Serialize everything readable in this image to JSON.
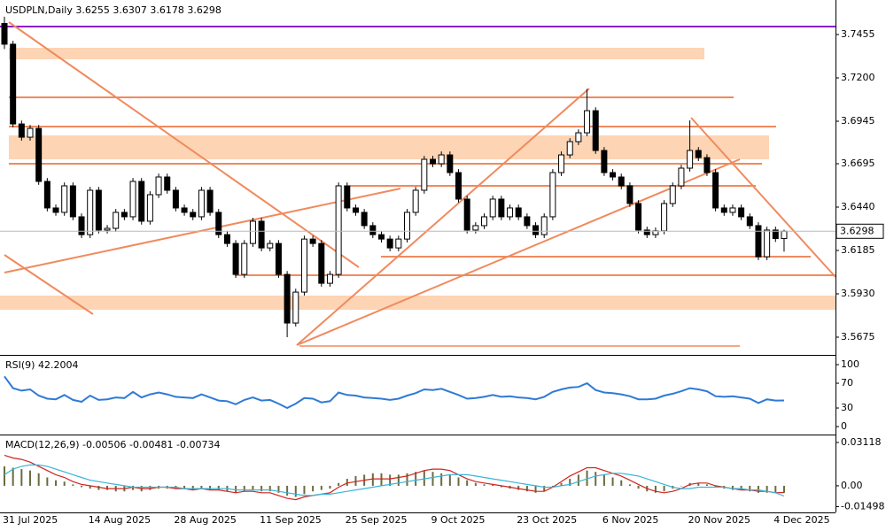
{
  "chart_data": [
    {
      "type": "candlestick",
      "title": "USDPLN,Daily",
      "categories": [
        "31 Jul 2025",
        null,
        null,
        null,
        null,
        null,
        null,
        null,
        null,
        null,
        "14 Aug 2025",
        null,
        null,
        null,
        null,
        null,
        null,
        null,
        null,
        null,
        "28 Aug 2025",
        null,
        null,
        null,
        null,
        null,
        null,
        null,
        null,
        null,
        "11 Sep 2025",
        null,
        null,
        null,
        null,
        null,
        null,
        null,
        null,
        null,
        "25 Sep 2025",
        null,
        null,
        null,
        null,
        null,
        null,
        null,
        null,
        null,
        "9 Oct 2025",
        null,
        null,
        null,
        null,
        null,
        null,
        null,
        null,
        null,
        "23 Oct 2025",
        null,
        null,
        null,
        null,
        null,
        null,
        null,
        null,
        null,
        "6 Nov 2025",
        null,
        null,
        null,
        null,
        null,
        null,
        null,
        null,
        null,
        "20 Nov 2025",
        null,
        null,
        null,
        null,
        null,
        null,
        null,
        null,
        null,
        "4 Dec 2025",
        null
      ],
      "open": [
        3.752,
        3.7398,
        3.6929,
        3.6851,
        3.6903,
        3.6591,
        3.6435,
        3.6409,
        3.6565,
        3.6383,
        3.6278,
        3.6539,
        3.6305,
        3.6315,
        3.6409,
        3.6383,
        3.6591,
        3.6357,
        3.6513,
        3.6617,
        3.6539,
        3.6435,
        3.6409,
        3.6383,
        3.6539,
        3.6409,
        3.6278,
        3.6226,
        3.6044,
        3.6226,
        3.6357,
        3.62,
        3.6226,
        3.6044,
        3.5758,
        3.594,
        3.6252,
        3.6226,
        3.5992,
        3.6044,
        3.6565,
        3.6435,
        3.6409,
        3.6331,
        3.6278,
        3.6252,
        3.62,
        3.6252,
        3.6409,
        3.6539,
        3.6721,
        3.6695,
        3.6747,
        3.6643,
        3.6487,
        3.6305,
        3.6331,
        3.6383,
        3.6487,
        3.6383,
        3.6435,
        3.6383,
        3.6331,
        3.6278,
        3.6383,
        3.6643,
        3.6747,
        3.6825,
        3.6877,
        3.7007,
        3.6773,
        3.6643,
        3.6617,
        3.6565,
        3.6461,
        3.6305,
        3.6278,
        3.63,
        3.6461,
        3.6565,
        3.6669,
        3.6773,
        3.6731,
        3.6643,
        3.6435,
        3.6409,
        3.6435,
        3.6383,
        3.6331,
        3.6148,
        3.6305,
        3.6255
      ],
      "high": [
        3.756,
        3.7418,
        3.6949,
        3.6923,
        3.6923,
        3.6611,
        3.6455,
        3.6585,
        3.6585,
        3.6403,
        3.6559,
        3.6559,
        3.6335,
        3.6429,
        3.6429,
        3.6611,
        3.6611,
        3.6533,
        3.6637,
        3.6637,
        3.6559,
        3.6455,
        3.6429,
        3.6559,
        3.6559,
        3.6429,
        3.6298,
        3.6246,
        3.6246,
        3.6377,
        3.6377,
        3.6246,
        3.6246,
        3.6064,
        3.596,
        3.6272,
        3.6272,
        3.6246,
        3.6064,
        3.6585,
        3.6585,
        3.6455,
        3.6429,
        3.6351,
        3.6298,
        3.6272,
        3.6272,
        3.6429,
        3.6559,
        3.6741,
        3.6741,
        3.6767,
        3.6767,
        3.6663,
        3.6507,
        3.6351,
        3.6403,
        3.6507,
        3.6507,
        3.6455,
        3.6455,
        3.6403,
        3.6351,
        3.6403,
        3.6663,
        3.6767,
        3.6845,
        3.6897,
        3.7135,
        3.7027,
        3.6793,
        3.6663,
        3.6637,
        3.6585,
        3.6481,
        3.6325,
        3.632,
        3.6481,
        3.6585,
        3.6689,
        3.695,
        3.6793,
        3.6751,
        3.6663,
        3.6455,
        3.6455,
        3.6455,
        3.6403,
        3.6351,
        3.6325,
        3.6325,
        3.6307
      ],
      "low": [
        3.737,
        3.6909,
        3.6831,
        3.6831,
        3.6571,
        3.6415,
        3.6389,
        3.6389,
        3.6363,
        3.6258,
        3.6258,
        3.6285,
        3.6285,
        3.6295,
        3.6363,
        3.6363,
        3.6337,
        3.6337,
        3.6493,
        3.6519,
        3.6415,
        3.6389,
        3.6363,
        3.6363,
        3.6389,
        3.6258,
        3.6206,
        3.6024,
        3.6024,
        3.6206,
        3.618,
        3.618,
        3.6024,
        3.5675,
        3.5738,
        3.592,
        3.6206,
        3.5972,
        3.5972,
        3.6024,
        3.6415,
        3.6389,
        3.6311,
        3.6258,
        3.6232,
        3.618,
        3.618,
        3.6232,
        3.6389,
        3.6519,
        3.6675,
        3.6675,
        3.6623,
        3.6467,
        3.6285,
        3.6285,
        3.6311,
        3.6363,
        3.6363,
        3.6363,
        3.6363,
        3.6311,
        3.6258,
        3.6258,
        3.6363,
        3.6623,
        3.6727,
        3.6805,
        3.6857,
        3.6753,
        3.6623,
        3.6597,
        3.6545,
        3.6441,
        3.6285,
        3.6258,
        3.6258,
        3.628,
        3.6441,
        3.6545,
        3.6649,
        3.6711,
        3.6623,
        3.6415,
        3.6389,
        3.6389,
        3.6363,
        3.6311,
        3.6128,
        3.6128,
        3.6235,
        3.6178
      ],
      "close": [
        3.7398,
        3.6929,
        3.6851,
        3.6903,
        3.6591,
        3.6435,
        3.6409,
        3.6565,
        3.6383,
        3.6278,
        3.6539,
        3.6305,
        3.6315,
        3.6409,
        3.6383,
        3.6591,
        3.6357,
        3.6513,
        3.6617,
        3.6539,
        3.6435,
        3.6409,
        3.6383,
        3.6539,
        3.6409,
        3.6278,
        3.6226,
        3.6044,
        3.6226,
        3.6357,
        3.62,
        3.6226,
        3.6044,
        3.5758,
        3.594,
        3.6252,
        3.6226,
        3.5992,
        3.6044,
        3.6565,
        3.6435,
        3.6409,
        3.6331,
        3.6278,
        3.6252,
        3.62,
        3.6252,
        3.6409,
        3.6539,
        3.6721,
        3.6695,
        3.6747,
        3.6643,
        3.6487,
        3.6305,
        3.6331,
        3.6383,
        3.6487,
        3.6383,
        3.6435,
        3.6383,
        3.6331,
        3.6278,
        3.6383,
        3.6643,
        3.6747,
        3.6825,
        3.6877,
        3.7007,
        3.6773,
        3.6643,
        3.6617,
        3.6565,
        3.6461,
        3.6305,
        3.6278,
        3.63,
        3.6461,
        3.6565,
        3.6669,
        3.6773,
        3.6731,
        3.6643,
        3.6435,
        3.6409,
        3.6435,
        3.6383,
        3.6331,
        3.6148,
        3.6305,
        3.6255,
        3.6298
      ],
      "up_color": "#ffffff",
      "down_color": "#000000",
      "wick_color": "#000000",
      "ylim": [
        3.5576,
        3.7658
      ],
      "yticks": [
        3.7455,
        {
          "value": 3.72,
          "label": "3.7200"
        },
        3.6945,
        3.6695,
        {
          "value": 3.644,
          "label": "3.6440"
        },
        3.6185,
        {
          "value": 3.593,
          "label": "3.5930"
        },
        3.5675
      ]
    },
    {
      "type": "line",
      "title": "RSI(9)",
      "color": "#2f7ad6",
      "values": [
        81,
        62,
        58,
        60,
        50,
        45,
        44,
        51,
        43,
        40,
        50,
        43,
        44,
        47,
        46,
        56,
        47,
        52,
        55,
        52,
        48,
        47,
        46,
        52,
        47,
        42,
        41,
        36,
        43,
        47,
        42,
        43,
        37,
        30,
        37,
        46,
        45,
        39,
        41,
        55,
        51,
        50,
        47,
        46,
        45,
        43,
        45,
        50,
        54,
        60,
        59,
        61,
        56,
        51,
        45,
        46,
        48,
        51,
        48,
        49,
        47,
        46,
        44,
        48,
        56,
        60,
        63,
        64,
        70,
        59,
        55,
        54,
        52,
        49,
        44,
        44,
        45,
        50,
        53,
        57,
        62,
        60,
        57,
        49,
        48,
        49,
        47,
        45,
        38,
        44,
        42,
        42.2004
      ],
      "ylim": [
        -11.4,
        112.9
      ],
      "yticks": [
        100,
        70,
        30,
        0
      ]
    },
    {
      "type": "macd",
      "title": "MACD(12,26,9)",
      "series": [
        {
          "type": "bar",
          "color": "#6b6b3f",
          "values": [
            0.014,
            0.013,
            0.012,
            0.011,
            0.009,
            0.006,
            0.004,
            0.003,
            0.001,
            -0.001,
            -0.002,
            -0.003,
            -0.003,
            -0.004,
            -0.004,
            -0.003,
            -0.004,
            -0.003,
            -0.002,
            -0.002,
            -0.002,
            -0.002,
            -0.003,
            -0.002,
            -0.003,
            -0.003,
            -0.004,
            -0.005,
            -0.004,
            -0.003,
            -0.004,
            -0.004,
            -0.005,
            -0.007,
            -0.008,
            -0.006,
            -0.004,
            -0.003,
            -0.002,
            0.002,
            0.005,
            0.007,
            0.008,
            0.009,
            0.009,
            0.008,
            0.008,
            0.009,
            0.01,
            0.011,
            0.01,
            0.009,
            0.008,
            0.006,
            0.004,
            0.002,
            0.001,
            0.001,
            -0.001,
            -0.002,
            -0.003,
            -0.004,
            -0.005,
            -0.004,
            -0.001,
            0.002,
            0.005,
            0.008,
            0.011,
            0.01,
            0.008,
            0.006,
            0.004,
            0.001,
            -0.002,
            -0.004,
            -0.005,
            -0.004,
            -0.002,
            0,
            0.002,
            0.002,
            0.001,
            -0.001,
            -0.002,
            -0.003,
            -0.003,
            -0.004,
            -0.005,
            -0.005,
            -0.005,
            -0.00506
          ]
        },
        {
          "type": "line",
          "color": "#d0241f",
          "values": [
            0.022,
            0.02,
            0.019,
            0.017,
            0.014,
            0.011,
            0.008,
            0.006,
            0.003,
            0.001,
            0,
            -0.001,
            -0.002,
            -0.002,
            -0.002,
            -0.001,
            -0.002,
            -0.002,
            -0.001,
            -0.001,
            -0.002,
            -0.002,
            -0.003,
            -0.002,
            -0.003,
            -0.003,
            -0.004,
            -0.005,
            -0.004,
            -0.004,
            -0.005,
            -0.005,
            -0.007,
            -0.009,
            -0.01,
            -0.008,
            -0.007,
            -0.006,
            -0.005,
            -0.001,
            0.002,
            0.003,
            0.004,
            0.005,
            0.005,
            0.005,
            0.006,
            0.007,
            0.009,
            0.011,
            0.012,
            0.012,
            0.011,
            0.008,
            0.005,
            0.003,
            0.002,
            0.001,
            0,
            -0.001,
            -0.002,
            -0.003,
            -0.004,
            -0.004,
            -0.001,
            0.003,
            0.007,
            0.01,
            0.013,
            0.013,
            0.011,
            0.009,
            0.007,
            0.004,
            0.001,
            -0.002,
            -0.004,
            -0.005,
            -0.004,
            -0.002,
            0.001,
            0.002,
            0.002,
            0,
            -0.001,
            -0.002,
            -0.003,
            -0.003,
            -0.004,
            -0.004,
            -0.005,
            -0.00481
          ]
        },
        {
          "type": "line",
          "color": "#3bb4d8",
          "values": [
            0.008,
            0.012,
            0.014,
            0.015,
            0.015,
            0.014,
            0.012,
            0.01,
            0.008,
            0.006,
            0.004,
            0.003,
            0.002,
            0.001,
            0,
            -0.001,
            -0.001,
            -0.001,
            -0.001,
            -0.001,
            -0.001,
            -0.002,
            -0.002,
            -0.002,
            -0.002,
            -0.002,
            -0.002,
            -0.003,
            -0.003,
            -0.003,
            -0.003,
            -0.003,
            -0.004,
            -0.005,
            -0.006,
            -0.007,
            -0.007,
            -0.006,
            -0.006,
            -0.005,
            -0.004,
            -0.003,
            -0.002,
            -0.001,
            0,
            0.001,
            0.002,
            0.003,
            0.004,
            0.005,
            0.006,
            0.007,
            0.008,
            0.008,
            0.008,
            0.007,
            0.006,
            0.005,
            0.004,
            0.003,
            0.002,
            0.001,
            0,
            -0.001,
            -0.001,
            0,
            0.001,
            0.003,
            0.005,
            0.007,
            0.008,
            0.009,
            0.009,
            0.008,
            0.007,
            0.005,
            0.003,
            0.001,
            -0.001,
            -0.002,
            -0.002,
            -0.001,
            -0.001,
            -0.001,
            -0.001,
            -0.002,
            -0.002,
            -0.003,
            -0.003,
            -0.004,
            -0.005,
            -0.00734
          ]
        }
      ],
      "ylim": [
        -0.0185,
        0.0356
      ],
      "yticks": [
        0.03118,
        {
          "value": 0,
          "label": "0.00"
        },
        -0.01498
      ]
    }
  ]
}
